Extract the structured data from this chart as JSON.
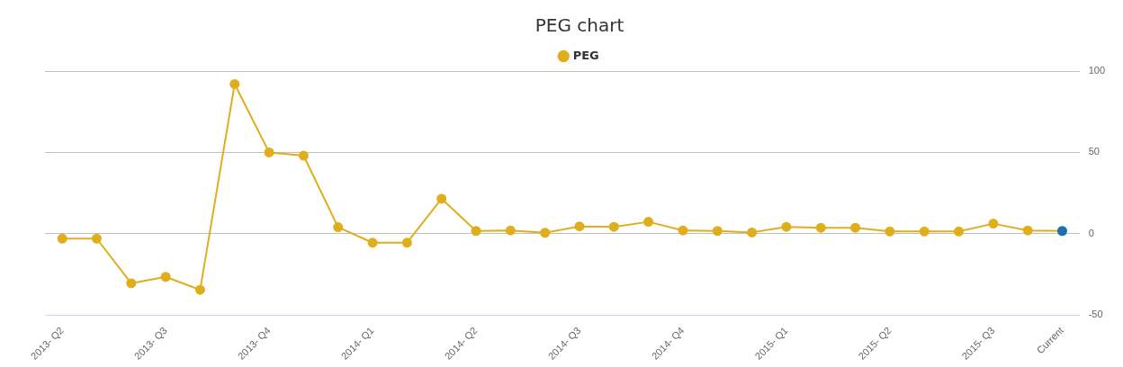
{
  "chart_data": {
    "type": "line",
    "title": "PEG chart",
    "categories": [
      "2013- Q2",
      null,
      null,
      "2013- Q3",
      null,
      null,
      "2013- Q4",
      null,
      null,
      "2014- Q1",
      null,
      null,
      "2014- Q2",
      null,
      null,
      "2014- Q3",
      null,
      null,
      "2014- Q4",
      null,
      null,
      "2015- Q1",
      null,
      null,
      "2015- Q2",
      null,
      null,
      "2015- Q3",
      null,
      "Current"
    ],
    "series": [
      {
        "name": "PEG",
        "color": "#e0ae1c",
        "colors": [
          "#e0ae1c",
          "#e0ae1c",
          "#e0ae1c",
          "#e0ae1c",
          "#e0ae1c",
          "#e0ae1c",
          "#e0ae1c",
          "#e0ae1c",
          "#e0ae1c",
          "#e0ae1c",
          "#e0ae1c",
          "#e0ae1c",
          "#e0ae1c",
          "#e0ae1c",
          "#e0ae1c",
          "#e0ae1c",
          "#e0ae1c",
          "#e0ae1c",
          "#e0ae1c",
          "#e0ae1c",
          "#e0ae1c",
          "#e0ae1c",
          "#e0ae1c",
          "#e0ae1c",
          "#e0ae1c",
          "#e0ae1c",
          "#e0ae1c",
          "#e0ae1c",
          "#e0ae1c",
          "#1f6fb0"
        ],
        "values": [
          -3,
          -3,
          -30.5,
          -26.5,
          -34.5,
          92,
          50,
          48,
          4,
          -5.5,
          -5.5,
          21.5,
          1.7,
          2,
          0.6,
          4.5,
          4.2,
          7.3,
          2,
          1.7,
          0.8,
          4.2,
          3.7,
          3.7,
          1.4,
          1.4,
          1.4,
          6.2,
          2,
          1.7
        ]
      }
    ],
    "ylim": [
      -50,
      100
    ],
    "yticks": [
      -50,
      0,
      50,
      100
    ],
    "grid": "y",
    "legend": "top",
    "marker": "circle",
    "line_style": "solid"
  }
}
